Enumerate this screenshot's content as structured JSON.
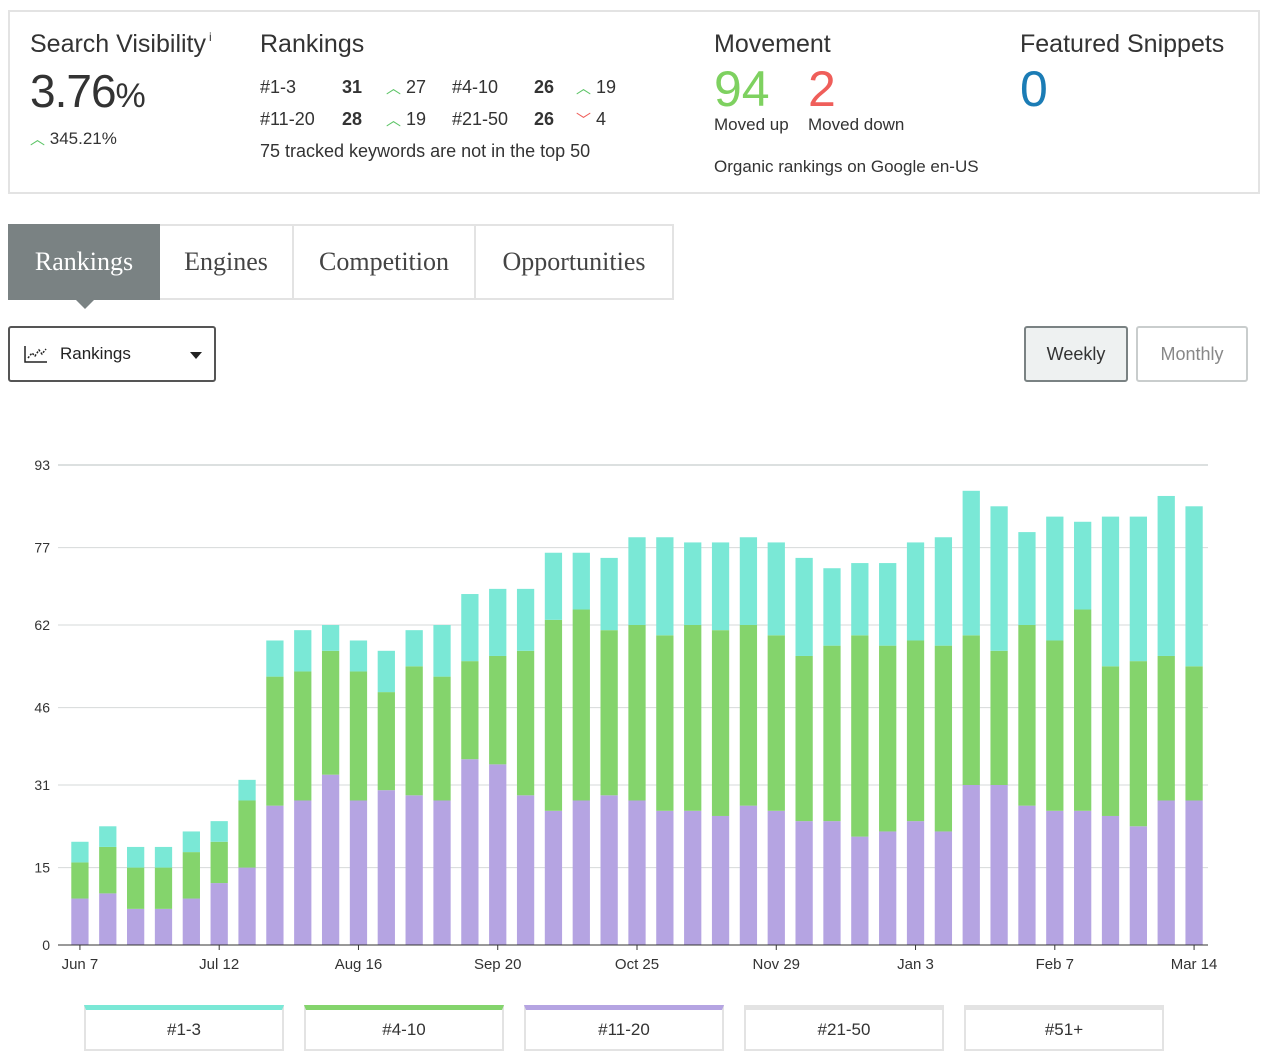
{
  "summary": {
    "visibility": {
      "title": "Search Visibility",
      "info_glyph": "i",
      "value": "3.76",
      "unit": "%",
      "change": "345.21%",
      "change_direction": "up"
    },
    "rankings": {
      "title": "Rankings",
      "rows": [
        {
          "label": "#1-3",
          "count": "31",
          "change": "27",
          "dir": "up"
        },
        {
          "label": "#4-10",
          "count": "26",
          "change": "19",
          "dir": "up"
        },
        {
          "label": "#11-20",
          "count": "28",
          "change": "19",
          "dir": "up"
        },
        {
          "label": "#21-50",
          "count": "26",
          "change": "4",
          "dir": "down"
        }
      ],
      "note": "75 tracked keywords are not in the top 50"
    },
    "movement": {
      "title": "Movement",
      "up_value": "94",
      "up_label": "Moved up",
      "down_value": "2",
      "down_label": "Moved down",
      "note": "Organic rankings on Google en-US"
    },
    "snippets": {
      "title": "Featured Snippets",
      "value": "0"
    }
  },
  "tabs": [
    {
      "label": "Rankings",
      "active": true
    },
    {
      "label": "Engines",
      "active": false
    },
    {
      "label": "Competition",
      "active": false
    },
    {
      "label": "Opportunities",
      "active": false
    }
  ],
  "controls": {
    "dropdown_label": "Rankings",
    "dropdown_icon": "line-chart-icon",
    "period_weekly": "Weekly",
    "period_monthly": "Monthly",
    "selected_period": "Weekly"
  },
  "colors": {
    "top3": "#7ae8d6",
    "top4_10": "#84d46c",
    "top11_20": "#b5a4e2",
    "top21_50": "#e3e3e3",
    "top51": "#e3e3e3",
    "moved_up": "#7ed160",
    "moved_down": "#ef5e5a",
    "snippets": "#1b7cb5",
    "active_tab": "#7a8283"
  },
  "chart_data": {
    "type": "bar",
    "stacked": true,
    "y_ticks": [
      0,
      15,
      31,
      46,
      62,
      77,
      93
    ],
    "ylim": [
      0,
      93
    ],
    "grid": true,
    "x_tick_labels": [
      {
        "index": 0,
        "label": "Jun 7"
      },
      {
        "index": 5,
        "label": "Jul 12"
      },
      {
        "index": 10,
        "label": "Aug 16"
      },
      {
        "index": 15,
        "label": "Sep 20"
      },
      {
        "index": 20,
        "label": "Oct 25"
      },
      {
        "index": 25,
        "label": "Nov 29"
      },
      {
        "index": 30,
        "label": "Jan 3"
      },
      {
        "index": 35,
        "label": "Feb 7"
      },
      {
        "index": 40,
        "label": "Mar 14"
      }
    ],
    "series": [
      {
        "name": "#11-20",
        "color": "#b5a4e2",
        "values": [
          9,
          10,
          7,
          7,
          9,
          12,
          15,
          27,
          28,
          33,
          28,
          30,
          29,
          28,
          36,
          35,
          29,
          26,
          28,
          29,
          28,
          26,
          26,
          25,
          27,
          26,
          24,
          24,
          21,
          22,
          24,
          22,
          31,
          31,
          27,
          26,
          26,
          25,
          23,
          28,
          28
        ]
      },
      {
        "name": "#4-10",
        "color": "#84d46c",
        "values": [
          7,
          9,
          8,
          8,
          9,
          8,
          13,
          25,
          25,
          24,
          25,
          19,
          25,
          24,
          19,
          21,
          28,
          37,
          37,
          32,
          34,
          34,
          36,
          36,
          35,
          34,
          32,
          34,
          39,
          36,
          35,
          36,
          29,
          26,
          35,
          33,
          39,
          29,
          32,
          28,
          26
        ]
      },
      {
        "name": "#1-3",
        "color": "#7ae8d6",
        "values": [
          4,
          4,
          4,
          4,
          4,
          4,
          4,
          7,
          8,
          5,
          6,
          8,
          7,
          10,
          13,
          13,
          12,
          13,
          11,
          14,
          17,
          19,
          16,
          17,
          17,
          18,
          19,
          15,
          14,
          16,
          19,
          21,
          28,
          28,
          18,
          24,
          17,
          29,
          28,
          31,
          31
        ]
      },
      {
        "name": "#21-50",
        "color": "#e3e3e3",
        "values": []
      },
      {
        "name": "#51+",
        "color": "#e3e3e3",
        "values": []
      }
    ]
  },
  "legend": [
    {
      "label": "#1-3",
      "color": "#7ae8d6"
    },
    {
      "label": "#4-10",
      "color": "#84d46c"
    },
    {
      "label": "#11-20",
      "color": "#b5a4e2"
    },
    {
      "label": "#21-50",
      "color": "#e3e3e3"
    },
    {
      "label": "#51+",
      "color": "#e3e3e3"
    }
  ]
}
